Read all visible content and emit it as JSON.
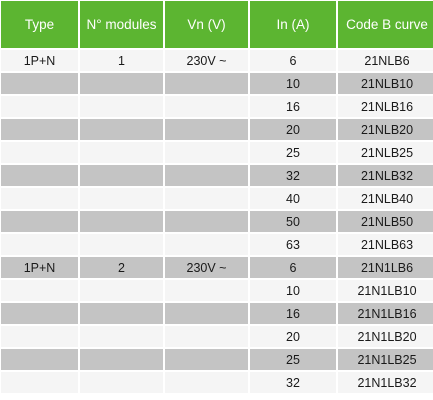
{
  "table": {
    "headers": [
      "Type",
      "N° modules",
      "Vn (V)",
      "In (A)",
      "Code B curve"
    ],
    "rows": [
      {
        "type": "1P+N",
        "modules": "1",
        "vn": "230V ~",
        "in": "6",
        "code": "21NLB6"
      },
      {
        "type": "",
        "modules": "",
        "vn": "",
        "in": "10",
        "code": "21NLB10"
      },
      {
        "type": "",
        "modules": "",
        "vn": "",
        "in": "16",
        "code": "21NLB16"
      },
      {
        "type": "",
        "modules": "",
        "vn": "",
        "in": "20",
        "code": "21NLB20"
      },
      {
        "type": "",
        "modules": "",
        "vn": "",
        "in": "25",
        "code": "21NLB25"
      },
      {
        "type": "",
        "modules": "",
        "vn": "",
        "in": "32",
        "code": "21NLB32"
      },
      {
        "type": "",
        "modules": "",
        "vn": "",
        "in": "40",
        "code": "21NLB40"
      },
      {
        "type": "",
        "modules": "",
        "vn": "",
        "in": "50",
        "code": "21NLB50"
      },
      {
        "type": "",
        "modules": "",
        "vn": "",
        "in": "63",
        "code": "21NLB63"
      },
      {
        "type": "1P+N",
        "modules": "2",
        "vn": "230V ~",
        "in": "6",
        "code": "21N1LB6"
      },
      {
        "type": "",
        "modules": "",
        "vn": "",
        "in": "10",
        "code": "21N1LB10"
      },
      {
        "type": "",
        "modules": "",
        "vn": "",
        "in": "16",
        "code": "21N1LB16"
      },
      {
        "type": "",
        "modules": "",
        "vn": "",
        "in": "20",
        "code": "21N1LB20"
      },
      {
        "type": "",
        "modules": "",
        "vn": "",
        "in": "25",
        "code": "21N1LB25"
      },
      {
        "type": "",
        "modules": "",
        "vn": "",
        "in": "32",
        "code": "21N1LB32"
      }
    ]
  },
  "colors": {
    "header_bg": "#5cb531",
    "header_text": "#ffffff",
    "row_light": "#f5f5f5",
    "row_dark": "#c4c4c4"
  }
}
